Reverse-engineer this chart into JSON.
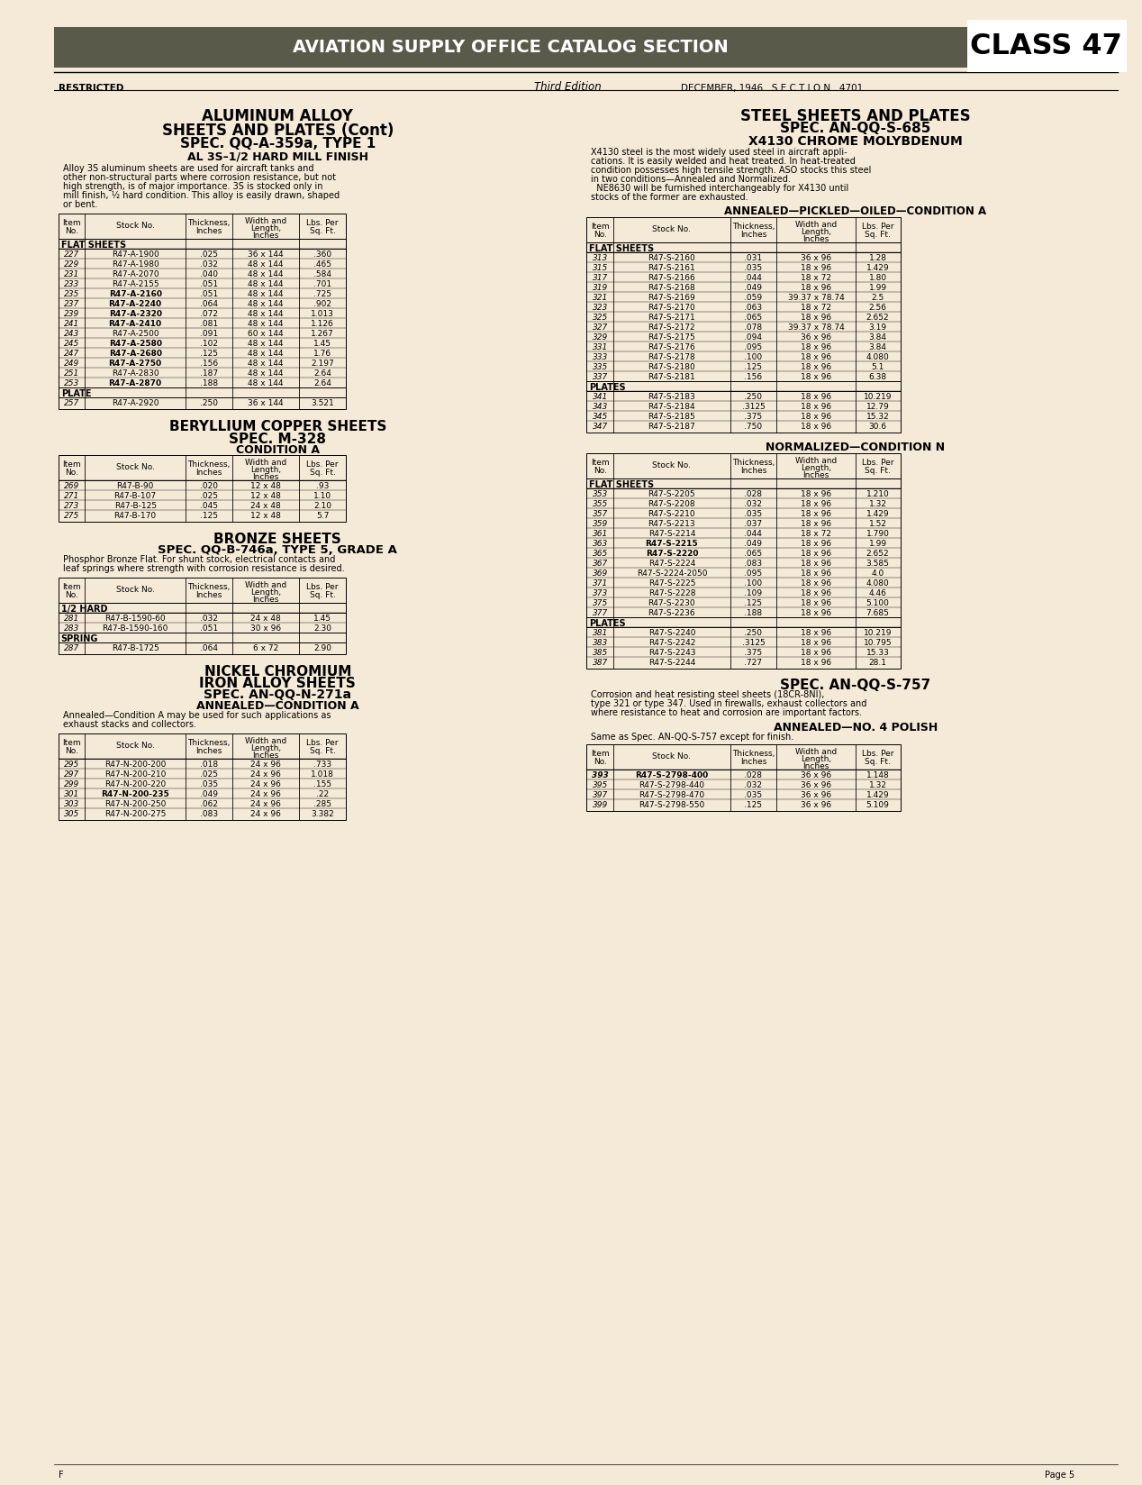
{
  "page_bg": "#f5ead8",
  "header_bg": "#5a5a4a",
  "header_text": "AVIATION SUPPLY OFFICE CATALOG SECTION",
  "class_text": "CLASS 47",
  "restricted": "RESTRICTED",
  "edition": "Third Edition",
  "date_section": "DECEMBER, 1946   S E C T I O N   4701",
  "page_num": "Page 5",
  "footer_left": "F",
  "left_col": {
    "section1_title1": "ALUMINUM ALLOY",
    "section1_title2": "SHEETS AND PLATES (Cont)",
    "section1_title3": "SPEC. QQ-A-359a, TYPE 1",
    "section1_title4": "AL 3S–1/2 HARD MILL FINISH",
    "section1_body": "Alloy 3S aluminum sheets are used for aircraft tanks and\nother non-structural parts where corrosion resistance, but not\nhigh strength, is of major importance. 3S is stocked only in\nmill finish, ½ hard condition. This alloy is easily drawn, shaped\nor bent.",
    "table1_headers": [
      "Item\nNo.",
      "Stock No.",
      "Thickness,\nInches",
      "Width and\nLength,\nInches",
      "Lbs. Per\nSq. Ft."
    ],
    "table1_section1": "FLAT SHEETS",
    "table1_data": [
      [
        "227",
        "R47-A-1900",
        ".025",
        "36 x 144",
        ".360",
        false
      ],
      [
        "229",
        "R47-A-1980",
        ".032",
        "48 x 144",
        ".465",
        false
      ],
      [
        "231",
        "R47-A-2070",
        ".040",
        "48 x 144",
        ".584",
        false
      ],
      [
        "233",
        "R47-A-2155",
        ".051",
        "48 x 144",
        ".701",
        false
      ],
      [
        "235",
        "R47-A-2160",
        ".051",
        "48 x 144",
        ".725",
        true
      ],
      [
        "237",
        "R47-A-2240",
        ".064",
        "48 x 144",
        ".902",
        true
      ],
      [
        "239",
        "R47-A-2320",
        ".072",
        "48 x 144",
        "1.013",
        true
      ],
      [
        "241",
        "R47-A-2410",
        ".081",
        "48 x 144",
        "1.126",
        true
      ],
      [
        "243",
        "R47-A-2500",
        ".091",
        "60 x 144",
        "1.267",
        false
      ],
      [
        "245",
        "R47-A-2580",
        ".102",
        "48 x 144",
        "1.45",
        true
      ],
      [
        "247",
        "R47-A-2680",
        ".125",
        "48 x 144",
        "1.76",
        true
      ],
      [
        "249",
        "R47-A-2750",
        ".156",
        "48 x 144",
        "2.197",
        true
      ],
      [
        "251",
        "R47-A-2830",
        ".187",
        "48 x 144",
        "2.64",
        false
      ],
      [
        "253",
        "R47-A-2870",
        ".188",
        "48 x 144",
        "2.64",
        true
      ]
    ],
    "table1_section2": "PLATE",
    "table1_plate": [
      [
        "257",
        "R47-A-2920",
        ".250",
        "36 x 144",
        "3.521",
        false
      ]
    ],
    "section2_title1": "BERYLLIUM COPPER SHEETS",
    "section2_title2": "SPEC. M-328",
    "section2_title3": "CONDITION A",
    "table2_data": [
      [
        "269",
        "R47-B-90",
        ".020",
        "12 x 48",
        ".93"
      ],
      [
        "271",
        "R47-B-107",
        ".025",
        "12 x 48",
        "1.10"
      ],
      [
        "273",
        "R47-B-125",
        ".045",
        "24 x 48",
        "2.10"
      ],
      [
        "275",
        "R47-B-170",
        ".125",
        "12 x 48",
        "5.7"
      ]
    ],
    "section3_title1": "BRONZE SHEETS",
    "section3_title2": "SPEC. QQ-B-746a, TYPE 5, GRADE A",
    "section3_body": "Phosphor Bronze Flat. For shunt stock, electrical contacts and\nleaf springs where strength with corrosion resistance is desired.",
    "section3_sub1": "1/2 HARD",
    "table3a_data": [
      [
        "281",
        "R47-B-1590-60",
        ".032",
        "24 x 48",
        "1.45"
      ],
      [
        "283",
        "R47-B-1590-160",
        ".051",
        "30 x 96",
        "2.30"
      ]
    ],
    "section3_sub2": "SPRING",
    "table3b_data": [
      [
        "287",
        "R47-B-1725",
        ".064",
        "6 x 72",
        "2.90"
      ]
    ],
    "section4_title1": "NICKEL CHROMIUM",
    "section4_title2": "IRON ALLOY SHEETS",
    "section4_title3": "SPEC. AN-QQ-N-271a",
    "section4_title4": "ANNEALED—CONDITION A",
    "section4_body": "Annealed—Condition A may be used for such applications as\nexhaust stacks and collectors.",
    "table4_data": [
      [
        "295",
        "R47-N-200-200",
        ".018",
        "24 x 96",
        ".733",
        false
      ],
      [
        "297",
        "R47-N-200-210",
        ".025",
        "24 x 96",
        "1.018",
        false
      ],
      [
        "299",
        "R47-N-200-220",
        ".035",
        "24 x 96",
        ".155",
        false
      ],
      [
        "301",
        "R47-N-200-235",
        ".049",
        "24 x 96",
        ".22",
        true
      ],
      [
        "303",
        "R47-N-200-250",
        ".062",
        "24 x 96",
        ".285",
        false
      ],
      [
        "305",
        "R47-N-200-275",
        ".083",
        "24 x 96",
        "3.382",
        false
      ]
    ]
  },
  "right_col": {
    "section1_title1": "STEEL SHEETS AND PLATES",
    "section1_title2": "SPEC. AN-QQ-S-685",
    "section1_title3": "X4130 CHROME MOLYBDENUM",
    "section1_body": "X4130 steel is the most widely used steel in aircraft appli-\ncations. It is easily welded and heat treated. In heat-treated\ncondition possesses high tensile strength. ASO stocks this steel\nin two conditions—Annealed and Normalized.\n  NE8630 will be furnished interchangeably for X4130 until\nstocks of the former are exhausted.",
    "section1_sub1": "ANNEALED—PICKLED—OILED—CONDITION A",
    "table1_section1": "FLAT SHEETS",
    "table1_data": [
      [
        "313",
        "R47-S-2160",
        ".031",
        "36 x 96",
        "1.28",
        false
      ],
      [
        "315",
        "R47-S-2161",
        ".035",
        "18 x 96",
        "1.429",
        false
      ],
      [
        "317",
        "R47-S-2166",
        ".044",
        "18 x 72",
        "1.80",
        false
      ],
      [
        "319",
        "R47-S-2168",
        ".049",
        "18 x 96",
        "1.99",
        false
      ],
      [
        "321",
        "R47-S-2169",
        ".059",
        "39.37 x 78.74",
        "2.5",
        false
      ],
      [
        "323",
        "R47-S-2170",
        ".063",
        "18 x 72",
        "2.56",
        false
      ],
      [
        "325",
        "R47-S-2171",
        ".065",
        "18 x 96",
        "2.652",
        false
      ],
      [
        "327",
        "R47-S-2172",
        ".078",
        "39.37 x 78.74",
        "3.19",
        false
      ],
      [
        "329",
        "R47-S-2175",
        ".094",
        "36 x 96",
        "3.84",
        false
      ],
      [
        "331",
        "R47-S-2176",
        ".095",
        "18 x 96",
        "3.84",
        false
      ],
      [
        "333",
        "R47-S-2178",
        ".100",
        "18 x 96",
        "4.080",
        false
      ],
      [
        "335",
        "R47-S-2180",
        ".125",
        "18 x 96",
        "5.1",
        false
      ],
      [
        "337",
        "R47-S-2181",
        ".156",
        "18 x 96",
        "6.38",
        false
      ]
    ],
    "table1_section2": "PLATES",
    "table1_plates": [
      [
        "341",
        "R47-S-2183",
        ".250",
        "18 x 96",
        "10.219",
        false
      ],
      [
        "343",
        "R47-S-2184",
        ".3125",
        "18 x 96",
        "12.79",
        false
      ],
      [
        "345",
        "R47-S-2185",
        ".375",
        "18 x 96",
        "15.32",
        false
      ],
      [
        "347",
        "R47-S-2187",
        ".750",
        "18 x 96",
        "30.6",
        false
      ]
    ],
    "section2_sub": "NORMALIZED—CONDITION N",
    "table2_section1": "FLAT SHEETS",
    "table2_data": [
      [
        "353",
        "R47-S-2205",
        ".028",
        "18 x 96",
        "1.210",
        false
      ],
      [
        "355",
        "R47-S-2208",
        ".032",
        "18 x 96",
        "1.32",
        false
      ],
      [
        "357",
        "R47-S-2210",
        ".035",
        "18 x 96",
        "1.429",
        false
      ],
      [
        "359",
        "R47-S-2213",
        ".037",
        "18 x 96",
        "1.52",
        false
      ],
      [
        "361",
        "R47-S-2214",
        ".044",
        "18 x 72",
        "1.790",
        false
      ],
      [
        "363",
        "R47-S-2215",
        ".049",
        "18 x 96",
        "1.99",
        true
      ],
      [
        "365",
        "R47-S-2220",
        ".065",
        "18 x 96",
        "2.652",
        true
      ],
      [
        "367",
        "R47-S-2224",
        ".083",
        "18 x 96",
        "3.585",
        false
      ],
      [
        "369",
        "R47-S-2224-2050",
        ".095",
        "18 x 96",
        "4.0",
        false
      ],
      [
        "371",
        "R47-S-2225",
        ".100",
        "18 x 96",
        "4.080",
        false
      ],
      [
        "373",
        "R47-S-2228",
        ".109",
        "18 x 96",
        "4.46",
        false
      ],
      [
        "375",
        "R47-S-2230",
        ".125",
        "18 x 96",
        "5.100",
        false
      ],
      [
        "377",
        "R47-S-2236",
        ".188",
        "18 x 96",
        "7.685",
        false
      ]
    ],
    "table2_section2": "PLATES",
    "table2_plates": [
      [
        "381",
        "R47-S-2240",
        ".250",
        "18 x 96",
        "10.219",
        false
      ],
      [
        "383",
        "R47-S-2242",
        ".3125",
        "18 x 96",
        "10.795",
        false
      ],
      [
        "385",
        "R47-S-2243",
        ".375",
        "18 x 96",
        "15.33",
        false
      ],
      [
        "387",
        "R47-S-2244",
        ".727",
        "18 x 96",
        "28.1",
        false
      ]
    ],
    "section3_title1": "SPEC. AN-QQ-S-757",
    "section3_body": "Corrosion and heat resisting steel sheets (18CR-8NI),\ntype 321 or type 347. Used in firewalls, exhaust collectors and\nwhere resistance to heat and corrosion are important factors.",
    "section3_sub": "ANNEALED—NO. 4 POLISH",
    "section3_body2": "Same as Spec. AN-QQ-S-757 except for finish.",
    "table3_data": [
      [
        "393",
        "R47-S-2798-400",
        ".028",
        "36 x 96",
        "1.148",
        true
      ],
      [
        "395",
        "R47-S-2798-440",
        ".032",
        "36 x 96",
        "1.32",
        false
      ],
      [
        "397",
        "R47-S-2798-470",
        ".035",
        "36 x 96",
        "1.429",
        false
      ],
      [
        "399",
        "R47-S-2798-550",
        ".125",
        "36 x 96",
        "5.109",
        false
      ]
    ]
  }
}
